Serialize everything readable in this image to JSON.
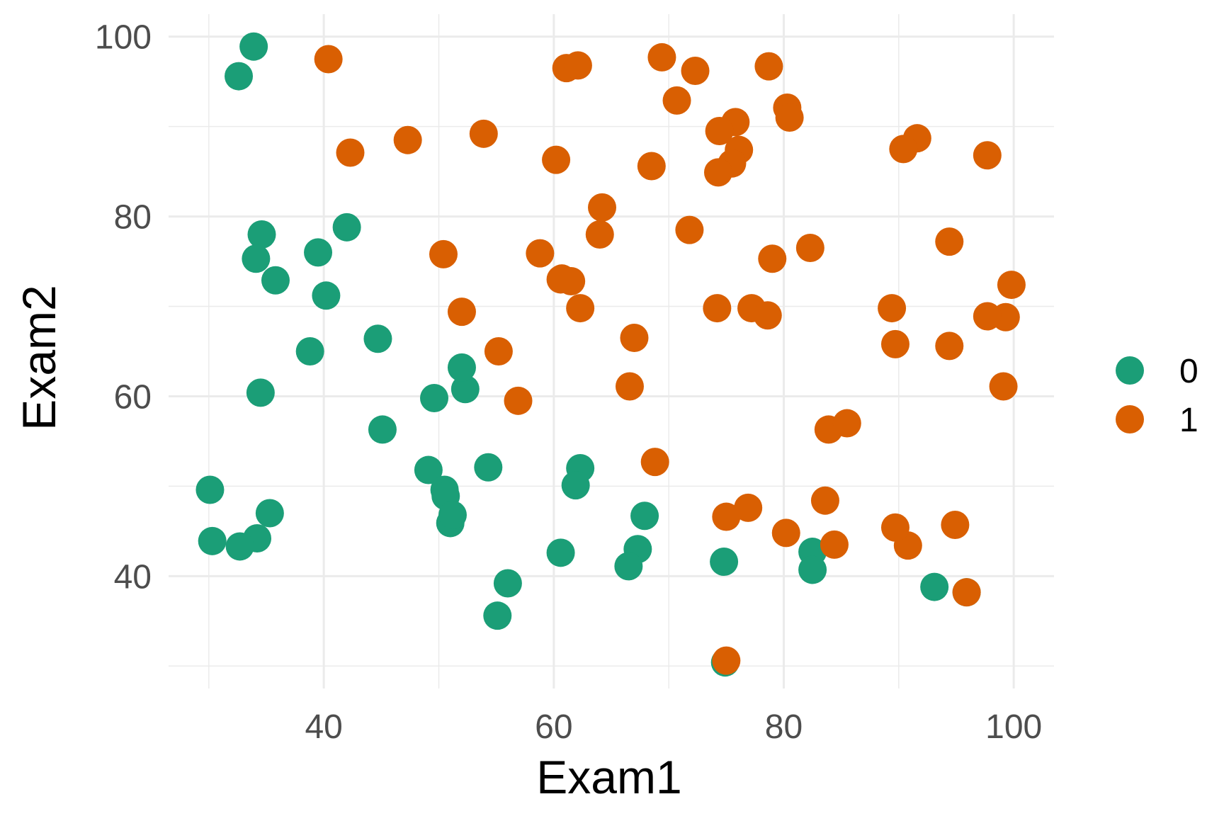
{
  "chart_data": {
    "type": "scatter",
    "title": "",
    "xlabel": "Exam1",
    "ylabel": "Exam2",
    "xlim": [
      26.5,
      103.5
    ],
    "ylim": [
      27.5,
      102.5
    ],
    "x_ticks": [
      40,
      60,
      80,
      100
    ],
    "y_ticks": [
      40,
      60,
      80,
      100
    ],
    "grid": true,
    "legend_position": "right",
    "colors": {
      "0": "#1b9e77",
      "1": "#d95f02"
    },
    "series": [
      {
        "name": "0",
        "points": [
          [
            34.6,
            78.0
          ],
          [
            30.3,
            43.9
          ],
          [
            35.8,
            72.9
          ],
          [
            45.1,
            56.3
          ],
          [
            39.5,
            76.0
          ],
          [
            38.8,
            65.0
          ],
          [
            34.2,
            44.2
          ],
          [
            33.9,
            98.9
          ],
          [
            32.6,
            95.6
          ],
          [
            40.2,
            71.2
          ],
          [
            49.1,
            51.8
          ],
          [
            44.7,
            66.4
          ],
          [
            35.3,
            47.0
          ],
          [
            34.5,
            60.4
          ],
          [
            30.1,
            49.6
          ],
          [
            42.0,
            78.8
          ],
          [
            52.3,
            60.8
          ],
          [
            50.5,
            49.6
          ],
          [
            62.3,
            52.0
          ],
          [
            61.9,
            50.1
          ],
          [
            54.3,
            52.1
          ],
          [
            55.1,
            35.6
          ],
          [
            51.0,
            45.9
          ],
          [
            67.3,
            43.0
          ],
          [
            56.0,
            39.2
          ],
          [
            34.1,
            75.3
          ],
          [
            66.5,
            41.1
          ],
          [
            32.7,
            43.3
          ],
          [
            74.8,
            41.6
          ],
          [
            50.6,
            48.9
          ],
          [
            49.6,
            59.8
          ],
          [
            82.5,
            42.7
          ],
          [
            93.1,
            38.8
          ],
          [
            95.9,
            38.2
          ],
          [
            82.5,
            40.7
          ],
          [
            67.9,
            46.7
          ],
          [
            51.2,
            46.8
          ],
          [
            74.9,
            30.4
          ],
          [
            52.0,
            63.2
          ],
          [
            60.6,
            42.6
          ]
        ]
      },
      {
        "name": "1",
        "points": [
          [
            60.2,
            86.3
          ],
          [
            79.0,
            75.3
          ],
          [
            61.1,
            96.5
          ],
          [
            75.0,
            46.6
          ],
          [
            76.1,
            87.4
          ],
          [
            84.4,
            43.5
          ],
          [
            95.9,
            38.2
          ],
          [
            75.0,
            30.6
          ],
          [
            82.3,
            76.5
          ],
          [
            69.4,
            97.7
          ],
          [
            71.8,
            78.5
          ],
          [
            89.7,
            65.8
          ],
          [
            83.9,
            56.3
          ],
          [
            94.4,
            77.2
          ],
          [
            80.3,
            92.1
          ],
          [
            99.3,
            68.8
          ],
          [
            97.7,
            86.8
          ],
          [
            47.3,
            88.5
          ],
          [
            80.2,
            44.8
          ],
          [
            94.4,
            65.6
          ],
          [
            90.8,
            43.4
          ],
          [
            89.4,
            69.8
          ],
          [
            77.2,
            69.8
          ],
          [
            62.3,
            69.8
          ],
          [
            62.1,
            96.8
          ],
          [
            60.6,
            73.0
          ],
          [
            97.7,
            68.9
          ],
          [
            99.8,
            72.4
          ],
          [
            64.0,
            78.0
          ],
          [
            60.7,
            73.1
          ],
          [
            64.2,
            81.0
          ],
          [
            68.5,
            85.6
          ],
          [
            99.1,
            61.1
          ],
          [
            85.5,
            57.0
          ],
          [
            70.7,
            92.9
          ],
          [
            52.0,
            69.4
          ],
          [
            50.4,
            75.8
          ],
          [
            89.7,
            45.4
          ],
          [
            78.7,
            96.7
          ],
          [
            94.9,
            45.7
          ],
          [
            75.8,
            90.5
          ],
          [
            78.6,
            69.0
          ],
          [
            74.2,
            69.8
          ],
          [
            58.8,
            75.9
          ],
          [
            56.9,
            59.5
          ],
          [
            61.5,
            72.8
          ],
          [
            67.0,
            66.5
          ],
          [
            66.6,
            61.1
          ],
          [
            53.9,
            89.2
          ],
          [
            72.3,
            96.2
          ],
          [
            74.4,
            89.5
          ],
          [
            75.5,
            85.9
          ],
          [
            74.3,
            84.9
          ],
          [
            91.6,
            88.7
          ],
          [
            90.4,
            87.5
          ],
          [
            68.8,
            52.7
          ],
          [
            83.6,
            48.4
          ],
          [
            42.3,
            87.1
          ],
          [
            40.4,
            97.5
          ],
          [
            80.5,
            91.0
          ],
          [
            55.2,
            65.0
          ],
          [
            76.9,
            47.6
          ]
        ]
      }
    ]
  }
}
